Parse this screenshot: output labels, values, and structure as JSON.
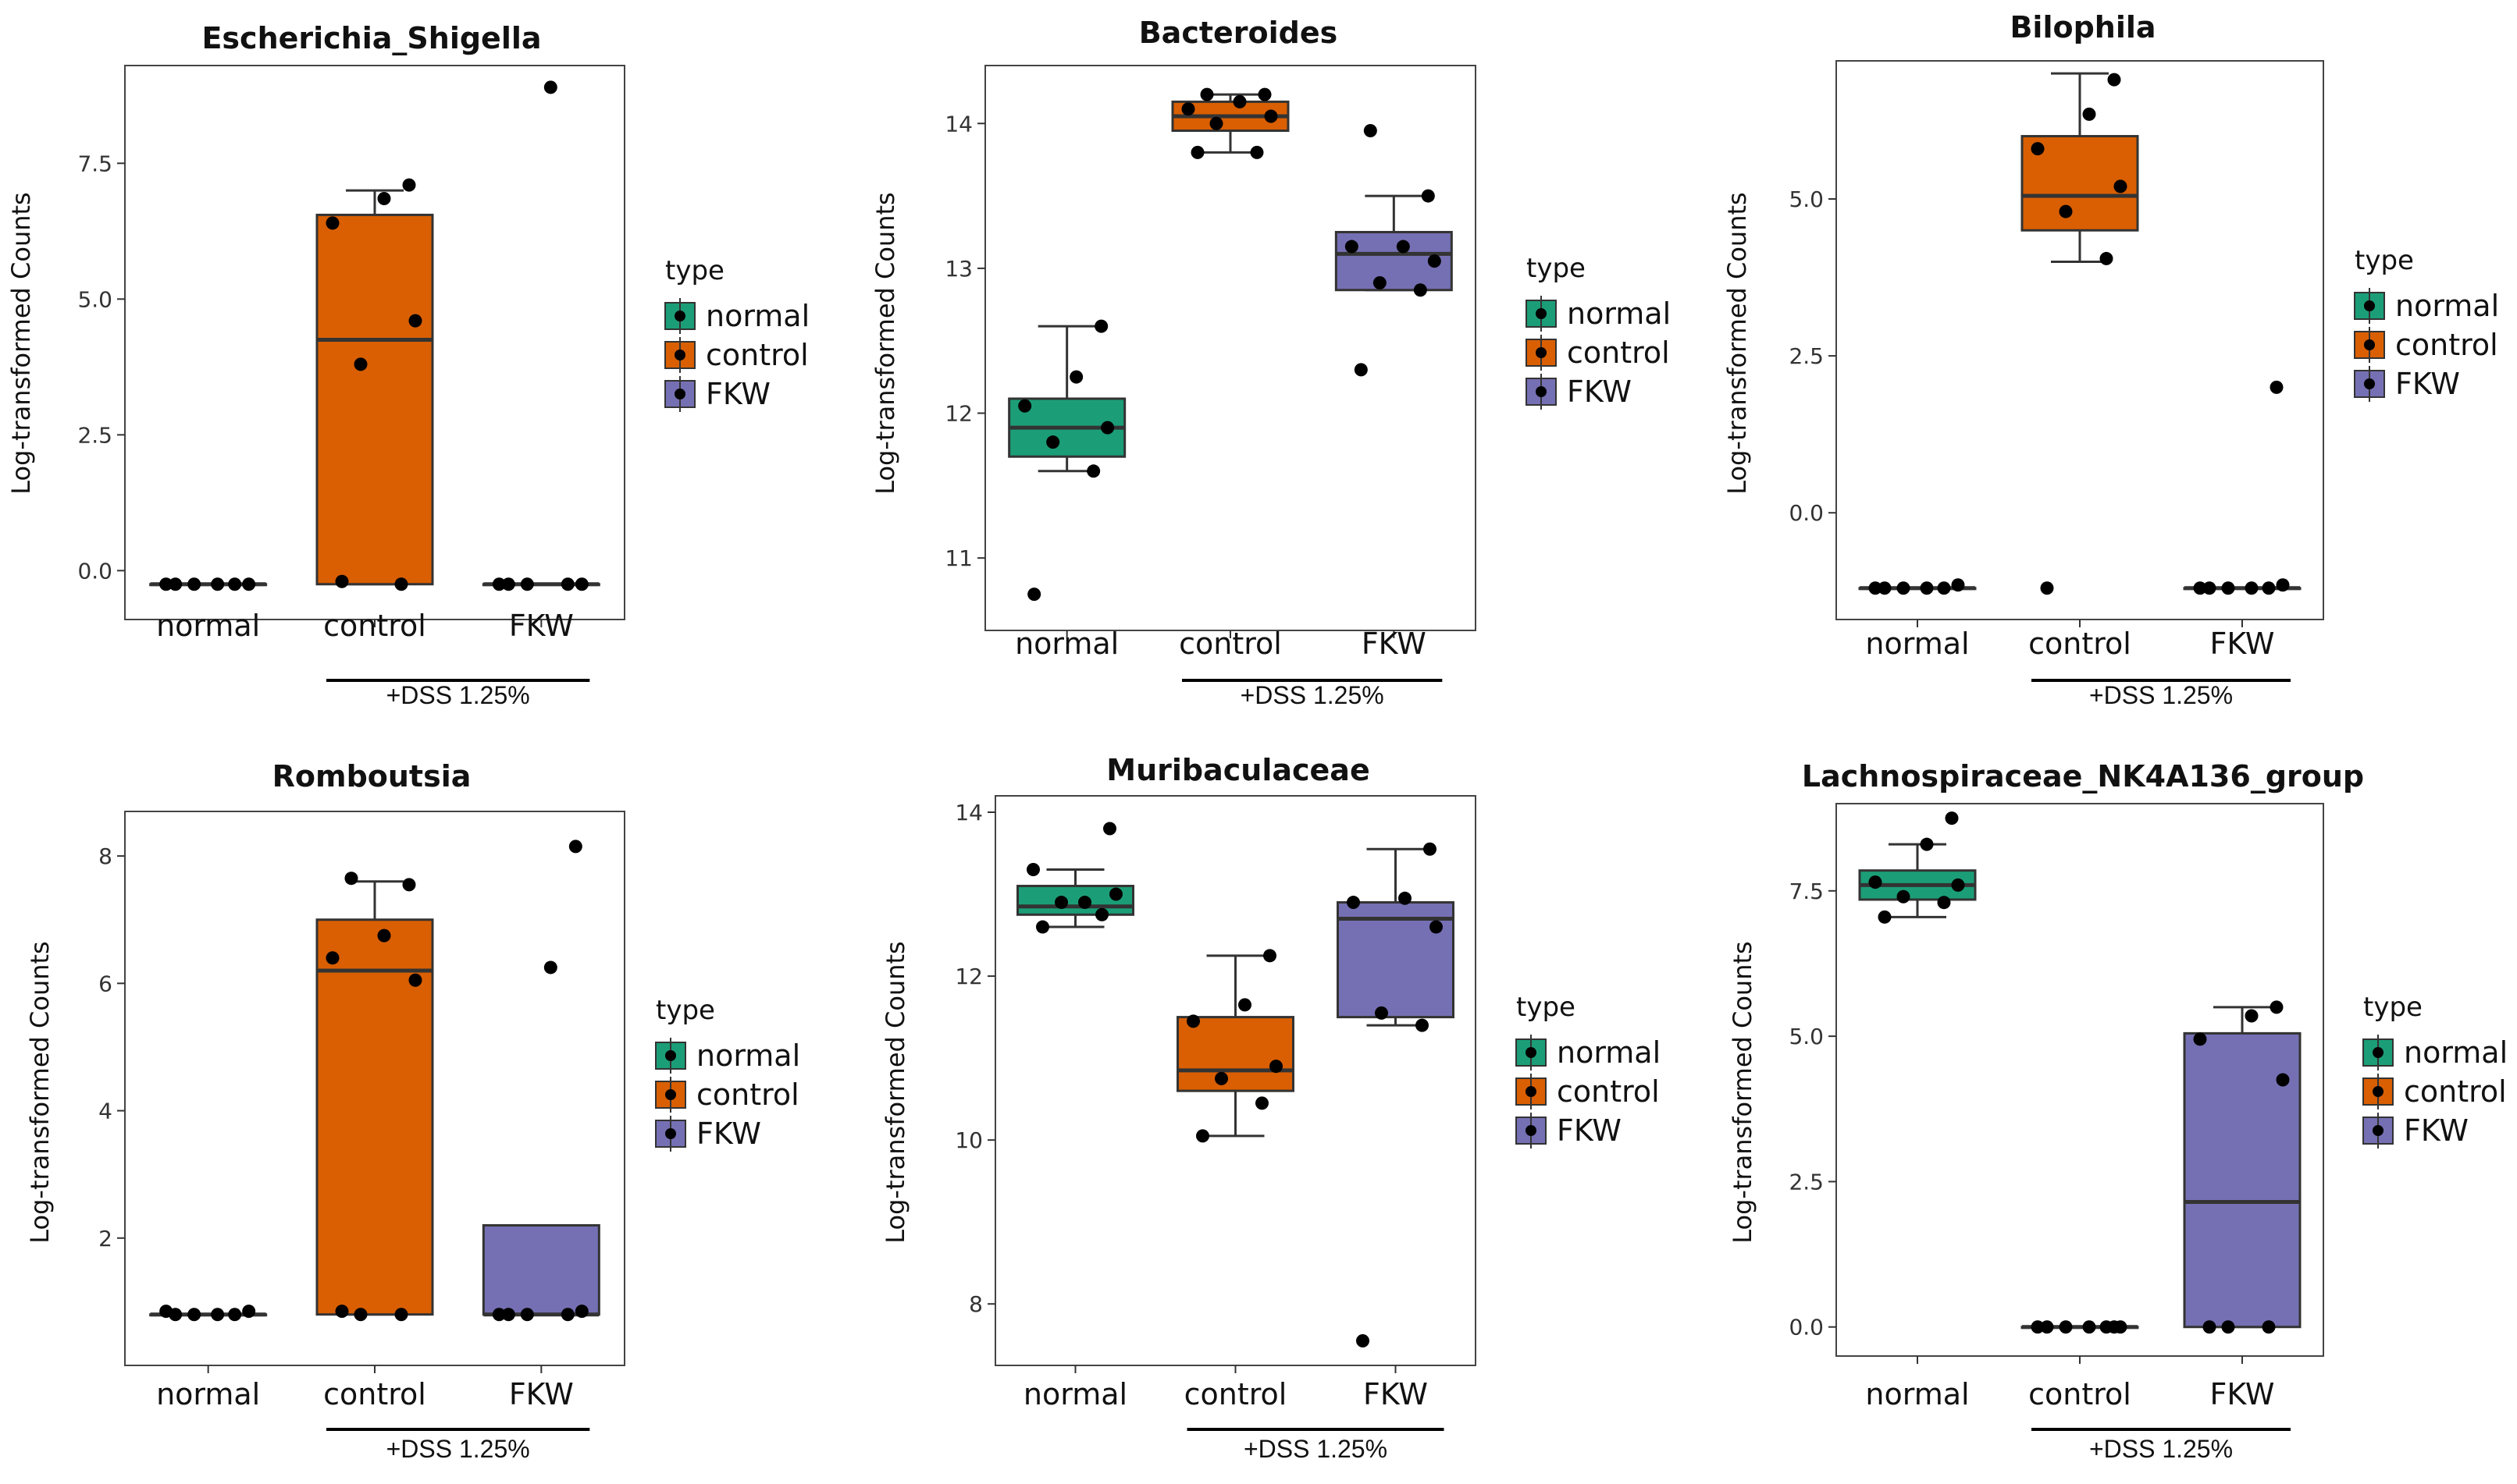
{
  "legend": {
    "title": "type",
    "entries": [
      {
        "label": "normal",
        "color": "#1b9e77"
      },
      {
        "label": "control",
        "color": "#d95f02"
      },
      {
        "label": "FKW",
        "color": "#7570b3"
      }
    ]
  },
  "chart_data": [
    {
      "type": "boxplot",
      "title": "Escherichia_Shigella",
      "ylabel": "Log-transformed Counts",
      "categories": [
        "normal",
        "control",
        "FKW"
      ],
      "group_label": "+DSS 1.25%",
      "ylim": [
        -0.9,
        9.3
      ],
      "yticks": [
        0.0,
        2.5,
        5.0,
        7.5
      ],
      "ytick_labels": [
        "0.0",
        "2.5",
        "5.0",
        "7.5"
      ],
      "boxes": [
        {
          "q1": -0.25,
          "median": -0.25,
          "q3": -0.25,
          "whisker_low": -0.25,
          "whisker_high": -0.25
        },
        {
          "q1": -0.25,
          "median": 4.25,
          "q3": 6.55,
          "whisker_low": -0.25,
          "whisker_high": 7.0
        },
        {
          "q1": -0.25,
          "median": -0.25,
          "q3": -0.25,
          "whisker_low": -0.25,
          "whisker_high": -0.25
        }
      ],
      "points": [
        [
          -0.25,
          -0.25,
          -0.25,
          -0.25,
          -0.25,
          -0.25
        ],
        [
          -0.2,
          -0.25,
          3.8,
          4.6,
          6.4,
          6.85,
          7.1
        ],
        [
          -0.25,
          -0.25,
          -0.25,
          -0.25,
          -0.25,
          8.9
        ]
      ]
    },
    {
      "type": "boxplot",
      "title": "Bacteroides",
      "ylabel": "Log-transformed Counts",
      "categories": [
        "normal",
        "control",
        "FKW"
      ],
      "group_label": "+DSS 1.25%",
      "ylim": [
        10.5,
        14.4
      ],
      "yticks": [
        11,
        12,
        13,
        14
      ],
      "ytick_labels": [
        "11",
        "12",
        "13",
        "14"
      ],
      "boxes": [
        {
          "q1": 11.7,
          "median": 11.9,
          "q3": 12.1,
          "whisker_low": 11.6,
          "whisker_high": 12.6
        },
        {
          "q1": 13.95,
          "median": 14.05,
          "q3": 14.15,
          "whisker_low": 13.8,
          "whisker_high": 14.2
        },
        {
          "q1": 12.85,
          "median": 13.1,
          "q3": 13.25,
          "whisker_low": 12.85,
          "whisker_high": 13.5
        }
      ],
      "points": [
        [
          10.75,
          11.6,
          11.8,
          11.9,
          12.05,
          12.25,
          12.6
        ],
        [
          13.8,
          13.8,
          14.0,
          14.05,
          14.1,
          14.15,
          14.2,
          14.2
        ],
        [
          12.3,
          12.85,
          12.9,
          13.05,
          13.15,
          13.15,
          13.5,
          13.95
        ]
      ]
    },
    {
      "type": "boxplot",
      "title": "Bilophila",
      "ylabel": "Log-transformed Counts",
      "categories": [
        "normal",
        "control",
        "FKW"
      ],
      "group_label": "+DSS 1.25%",
      "ylim": [
        -1.7,
        7.2
      ],
      "yticks": [
        0.0,
        2.5,
        5.0
      ],
      "ytick_labels": [
        "0.0",
        "2.5",
        "5.0"
      ],
      "boxes": [
        {
          "q1": -1.2,
          "median": -1.2,
          "q3": -1.2,
          "whisker_low": -1.2,
          "whisker_high": -1.2
        },
        {
          "q1": 4.5,
          "median": 5.05,
          "q3": 6.0,
          "whisker_low": 4.0,
          "whisker_high": 7.0
        },
        {
          "q1": -1.2,
          "median": -1.2,
          "q3": -1.2,
          "whisker_low": -1.2,
          "whisker_high": -1.2
        }
      ],
      "points": [
        [
          -1.2,
          -1.2,
          -1.2,
          -1.15,
          -1.2,
          -1.2
        ],
        [
          -1.2,
          4.05,
          4.8,
          5.2,
          5.8,
          6.35,
          6.9
        ],
        [
          -1.2,
          -1.2,
          -1.2,
          -1.15,
          -1.2,
          -1.2,
          2.0
        ]
      ]
    },
    {
      "type": "boxplot",
      "title": "Romboutsia",
      "ylabel": "Log-transformed Counts",
      "categories": [
        "normal",
        "control",
        "FKW"
      ],
      "group_label": "+DSS 1.25%",
      "ylim": [
        0.0,
        8.7
      ],
      "yticks": [
        2,
        4,
        6,
        8
      ],
      "ytick_labels": [
        "2",
        "4",
        "6",
        "8"
      ],
      "boxes": [
        {
          "q1": 0.8,
          "median": 0.8,
          "q3": 0.8,
          "whisker_low": 0.8,
          "whisker_high": 0.8
        },
        {
          "q1": 0.8,
          "median": 6.2,
          "q3": 7.0,
          "whisker_low": 0.8,
          "whisker_high": 7.6
        },
        {
          "q1": 0.8,
          "median": 0.8,
          "q3": 2.2,
          "whisker_low": 0.8,
          "whisker_high": 2.2
        }
      ],
      "points": [
        [
          0.8,
          0.8,
          0.8,
          0.85,
          0.85,
          0.8
        ],
        [
          0.85,
          0.8,
          0.8,
          6.05,
          6.4,
          6.75,
          7.55,
          7.65
        ],
        [
          0.8,
          0.8,
          0.8,
          0.85,
          0.8,
          6.25,
          8.15
        ]
      ]
    },
    {
      "type": "boxplot",
      "title": "Muribaculaceae",
      "ylabel": "Log-transformed Counts",
      "categories": [
        "normal",
        "control",
        "FKW"
      ],
      "group_label": "+DSS 1.25%",
      "ylim": [
        7.25,
        14.2
      ],
      "yticks": [
        8,
        10,
        12,
        14
      ],
      "ytick_labels": [
        "8",
        "10",
        "12",
        "14"
      ],
      "boxes": [
        {
          "q1": 12.75,
          "median": 12.85,
          "q3": 13.1,
          "whisker_low": 12.6,
          "whisker_high": 13.3
        },
        {
          "q1": 10.6,
          "median": 10.85,
          "q3": 11.5,
          "whisker_low": 10.05,
          "whisker_high": 12.25
        },
        {
          "q1": 11.5,
          "median": 12.7,
          "q3": 12.9,
          "whisker_low": 11.4,
          "whisker_high": 13.55
        }
      ],
      "points": [
        [
          12.6,
          12.75,
          12.9,
          13.0,
          13.3,
          12.9,
          13.8
        ],
        [
          10.05,
          10.45,
          10.75,
          10.9,
          11.45,
          11.65,
          12.25
        ],
        [
          7.55,
          11.4,
          11.55,
          12.6,
          12.9,
          12.95,
          13.55
        ]
      ]
    },
    {
      "type": "boxplot",
      "title": "Lachnospiraceae_NK4A136_group",
      "ylabel": "Log-transformed Counts",
      "categories": [
        "normal",
        "control",
        "FKW"
      ],
      "group_label": "+DSS 1.25%",
      "ylim": [
        -0.5,
        9.0
      ],
      "yticks": [
        0.0,
        2.5,
        5.0,
        7.5
      ],
      "ytick_labels": [
        "0.0",
        "2.5",
        "5.0",
        "7.5"
      ],
      "boxes": [
        {
          "q1": 7.35,
          "median": 7.6,
          "q3": 7.85,
          "whisker_low": 7.05,
          "whisker_high": 8.3
        },
        {
          "q1": 0.0,
          "median": 0.0,
          "q3": 0.0,
          "whisker_low": 0.0,
          "whisker_high": 0.0
        },
        {
          "q1": 0.0,
          "median": 2.15,
          "q3": 5.05,
          "whisker_low": 0.0,
          "whisker_high": 5.5
        }
      ],
      "points": [
        [
          7.05,
          7.3,
          7.4,
          7.6,
          7.65,
          8.3,
          8.75
        ],
        [
          0.0,
          0.0,
          0.0,
          0.0,
          0.0,
          0.0,
          0.0
        ],
        [
          0.0,
          0.0,
          0.0,
          4.25,
          4.95,
          5.35,
          5.5
        ]
      ]
    }
  ]
}
